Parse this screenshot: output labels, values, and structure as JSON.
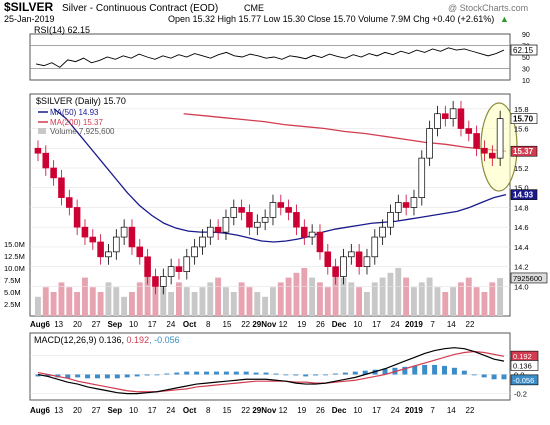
{
  "header": {
    "symbol": "$SILVER",
    "name": "Silver - Continuous Contract (EOD)",
    "exchange": "CME",
    "date": "25-Jan-2019",
    "ohlc": "Open 15.32  High 15.77  Low 15.30  Close 15.70  Volume 7.9M  Chg +0.40 (+2.61%)",
    "arrow": "▲",
    "watermark": "@ StockCharts.com"
  },
  "colors": {
    "up": "#000000",
    "down": "#cc0033",
    "volume_up": "#c8c8c8",
    "volume_down": "#e8a3b0",
    "ma50": "#1a1a8c",
    "ma200": "#d23c50",
    "macd": "#000000",
    "signal": "#d23c50",
    "histogram": "#3c8cc8",
    "highlight_fill": "#ffffc0",
    "highlight_stroke": "#8c8c3c"
  },
  "chart_data": {
    "type": "candlestick",
    "x_axis_labels": [
      "Aug6",
      "13",
      "20",
      "27",
      "Sep",
      "10",
      "17",
      "24",
      "Oct",
      "8",
      "15",
      "22",
      "29Nov",
      "12",
      "19",
      "26",
      "Dec",
      "10",
      "17",
      "24",
      "2019",
      "7",
      "14",
      "22"
    ],
    "rsi": {
      "label": "RSI(14) 62.15",
      "last": "62.15",
      "ticks": [
        "90",
        "70",
        "50",
        "30",
        "10"
      ],
      "values": [
        38,
        35,
        40,
        32,
        45,
        42,
        48,
        40,
        44,
        50,
        46,
        52,
        48,
        55,
        50,
        46,
        52,
        48,
        54,
        50,
        56,
        52,
        48,
        54,
        58,
        52,
        50,
        55,
        52,
        48,
        50,
        46,
        52,
        50,
        47,
        53,
        49,
        55,
        51,
        48,
        54,
        50,
        56,
        52,
        58,
        54,
        60,
        56,
        62,
        58,
        64,
        60,
        66,
        62,
        64,
        60,
        56,
        52,
        56,
        62
      ]
    },
    "price": {
      "legend_title": "$SILVER (Daily) 15.70",
      "ma50_label": "MA(50) 14.93",
      "ma200_label": "MA(200) 15.37",
      "volume_label": "Volume 7,925,600",
      "price_ticks": [
        "15.8",
        "15.6",
        "15.4",
        "15.2",
        "15.0",
        "14.8",
        "14.6",
        "14.4",
        "14.2",
        "14.0"
      ],
      "volume_ticks": [
        "15.0M",
        "12.5M",
        "10.0M",
        "7.5M",
        "5.0M",
        "2.5M"
      ],
      "tags": {
        "last": "15.70",
        "ma200": "15.37",
        "ma50": "14.93",
        "volume": "7925600"
      },
      "candles_close": [
        15.35,
        15.2,
        15.1,
        14.9,
        14.8,
        14.6,
        14.5,
        14.45,
        14.3,
        14.35,
        14.5,
        14.6,
        14.4,
        14.3,
        14.1,
        14.0,
        14.1,
        14.2,
        14.15,
        14.3,
        14.4,
        14.5,
        14.6,
        14.55,
        14.7,
        14.8,
        14.75,
        14.6,
        14.65,
        14.7,
        14.85,
        14.8,
        14.75,
        14.6,
        14.5,
        14.55,
        14.35,
        14.2,
        14.1,
        14.3,
        14.35,
        14.2,
        14.3,
        14.5,
        14.6,
        14.75,
        14.85,
        14.8,
        14.9,
        15.3,
        15.6,
        15.75,
        15.7,
        15.8,
        15.6,
        15.55,
        15.4,
        15.35,
        15.3,
        15.7
      ],
      "ma50": [
        15.8,
        15.7,
        15.55,
        15.4,
        15.25,
        15.1,
        14.95,
        14.82,
        14.72,
        14.64,
        14.59,
        14.56,
        14.55,
        14.55,
        14.54,
        14.52,
        14.49,
        14.46,
        14.45,
        14.46,
        14.48,
        14.51,
        14.55,
        14.58,
        14.6,
        14.62,
        14.64,
        14.65,
        14.66,
        14.68,
        14.7,
        14.72,
        14.74,
        14.76,
        14.8,
        14.85,
        14.9,
        14.93
      ],
      "ma200": [
        15.75,
        15.73,
        15.71,
        15.69,
        15.67,
        15.64,
        15.62,
        15.6,
        15.57,
        15.55,
        15.52,
        15.49,
        15.46,
        15.44,
        15.41,
        15.39,
        15.37
      ],
      "volume": [
        4,
        6,
        5,
        7,
        6,
        5,
        8,
        6,
        5,
        7,
        6,
        4,
        5,
        7,
        9,
        8,
        6,
        5,
        7,
        6,
        5,
        6,
        7,
        8,
        6,
        5,
        7,
        6,
        5,
        4,
        6,
        7,
        8,
        9,
        10,
        8,
        7,
        6,
        9,
        8,
        7,
        6,
        5,
        7,
        8,
        9,
        10,
        8,
        6,
        7,
        8,
        6,
        5,
        6,
        7,
        8,
        6,
        5,
        7,
        7.9
      ]
    },
    "macd": {
      "label": "MACD(12,26,9) 0.136, 0.192, -0.056",
      "label_parts": {
        "prefix": "MACD(12,26,9) 0.136, ",
        "signal": "0.192",
        "hist": ", -0.056"
      },
      "tags": [
        "0.192",
        "0.136",
        "-0.056"
      ],
      "ticks": [
        "0.2",
        "0.0",
        "-0.2"
      ],
      "macd": [
        0.0,
        -0.02,
        -0.05,
        -0.08,
        -0.1,
        -0.13,
        -0.15,
        -0.17,
        -0.19,
        -0.2,
        -0.2,
        -0.19,
        -0.18,
        -0.16,
        -0.14,
        -0.12,
        -0.1,
        -0.09,
        -0.08,
        -0.07,
        -0.06,
        -0.05,
        -0.05,
        -0.05,
        -0.06,
        -0.07,
        -0.09,
        -0.1,
        -0.1,
        -0.09,
        -0.07,
        -0.05,
        -0.03,
        0.0,
        0.03,
        0.06,
        0.1,
        0.14,
        0.18,
        0.22,
        0.25,
        0.27,
        0.28,
        0.27,
        0.24,
        0.2,
        0.16,
        0.14
      ],
      "signal": [
        0.02,
        0.0,
        -0.02,
        -0.04,
        -0.07,
        -0.09,
        -0.11,
        -0.13,
        -0.15,
        -0.17,
        -0.18,
        -0.18,
        -0.18,
        -0.17,
        -0.16,
        -0.15,
        -0.13,
        -0.12,
        -0.11,
        -0.1,
        -0.09,
        -0.08,
        -0.07,
        -0.07,
        -0.07,
        -0.07,
        -0.08,
        -0.08,
        -0.09,
        -0.09,
        -0.08,
        -0.07,
        -0.06,
        -0.04,
        -0.02,
        0.0,
        0.03,
        0.06,
        0.09,
        0.12,
        0.15,
        0.18,
        0.21,
        0.23,
        0.24,
        0.23,
        0.21,
        0.19
      ]
    }
  }
}
